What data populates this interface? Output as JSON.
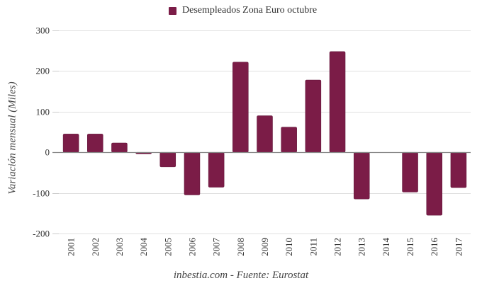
{
  "chart_data": {
    "type": "bar",
    "title": "",
    "legend": {
      "entries": [
        "Desempleados Zona Euro octubre"
      ],
      "placement": "top-center"
    },
    "xlabel": "",
    "ylabel": "Variación mensual (Miles)",
    "footer": "inbestia.com - Fuente: Eurostat",
    "categories": [
      "2001",
      "2002",
      "2003",
      "2004",
      "2005",
      "2006",
      "2007",
      "2008",
      "2009",
      "2010",
      "2011",
      "2012",
      "2013",
      "2014",
      "2015",
      "2016",
      "2017"
    ],
    "series": [
      {
        "name": "Desempleados Zona Euro octubre",
        "color": "#7b1c47",
        "values": [
          45,
          45,
          23,
          -4,
          -36,
          -105,
          -86,
          222,
          90,
          62,
          178,
          248,
          -115,
          0,
          -98,
          -155,
          -87
        ]
      }
    ],
    "ylim": [
      -200,
      300
    ],
    "yticks": [
      "-200",
      "-100",
      "0",
      "100",
      "200",
      "300"
    ],
    "ytick_values": [
      -200,
      -100,
      0,
      100,
      200,
      300
    ],
    "grid": true
  }
}
